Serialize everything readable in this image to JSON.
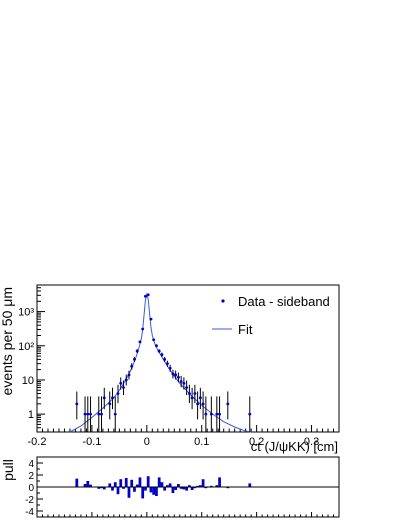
{
  "chart_data": [
    {
      "type": "scatter",
      "xlabel": "ct (J/ψKK) [cm]",
      "ylabel": "events per 50 μm",
      "yscale": "log",
      "xlim": [
        -0.2,
        0.35
      ],
      "ylim": [
        0.3,
        6000
      ],
      "x_tick_labels": [
        "-0.2",
        "-0.1",
        "0",
        "0.1",
        "0.2",
        "0.3"
      ],
      "y_tick_labels": [
        "1",
        "10",
        "10²",
        "10³"
      ],
      "legend": {
        "position": "top-right",
        "entries": [
          "Data - sideband",
          "Fit"
        ]
      },
      "series": [
        {
          "name": "Data - sideband",
          "style": "points-with-errors",
          "color": "#0000cc",
          "points": [
            {
              "x": -0.1275,
              "y": 2.0,
              "elo": 1.3,
              "ehi": 2.6
            },
            {
              "x": -0.1125,
              "y": 1.0,
              "elo": 0.83,
              "ehi": 2.3
            },
            {
              "x": -0.1075,
              "y": 1.0,
              "elo": 0.83,
              "ehi": 2.3
            },
            {
              "x": -0.1025,
              "y": 1.0,
              "elo": 0.83,
              "ehi": 2.3
            },
            {
              "x": -0.0875,
              "y": 1.0,
              "elo": 0.83,
              "ehi": 2.3
            },
            {
              "x": -0.0825,
              "y": 1.0,
              "elo": 0.83,
              "ehi": 2.3
            },
            {
              "x": -0.0775,
              "y": 3.0,
              "elo": 1.6,
              "ehi": 2.9
            },
            {
              "x": -0.0675,
              "y": 2.0,
              "elo": 1.3,
              "ehi": 2.6
            },
            {
              "x": -0.0625,
              "y": 3.0,
              "elo": 1.6,
              "ehi": 2.9
            },
            {
              "x": -0.0575,
              "y": 1.0,
              "elo": 0.83,
              "ehi": 2.3
            },
            {
              "x": -0.0525,
              "y": 4.0,
              "elo": 1.9,
              "ehi": 3.2
            },
            {
              "x": -0.0475,
              "y": 8.0,
              "elo": 2.8,
              "ehi": 3.9
            },
            {
              "x": -0.0425,
              "y": 6.0,
              "elo": 2.4,
              "ehi": 3.6
            },
            {
              "x": -0.0375,
              "y": 10.0,
              "elo": 3.1,
              "ehi": 4.3
            },
            {
              "x": -0.0325,
              "y": 14.0,
              "elo": 3.7,
              "ehi": 4.8
            },
            {
              "x": -0.0275,
              "y": 25.0,
              "elo": 5.0,
              "ehi": 6.0
            },
            {
              "x": -0.0225,
              "y": 40.0,
              "elo": 6.3,
              "ehi": 7.3
            },
            {
              "x": -0.0175,
              "y": 70.0,
              "elo": 8.4,
              "ehi": 9.4
            },
            {
              "x": -0.0125,
              "y": 130.0,
              "elo": 11.4,
              "ehi": 12.4
            },
            {
              "x": -0.0075,
              "y": 310.0,
              "elo": 17.6,
              "ehi": 18.6
            },
            {
              "x": -0.0025,
              "y": 2800.0,
              "elo": 53.0,
              "ehi": 54.0
            },
            {
              "x": 0.0025,
              "y": 3100.0,
              "elo": 55.7,
              "ehi": 56.7
            },
            {
              "x": 0.0075,
              "y": 600.0,
              "elo": 24.5,
              "ehi": 25.5
            },
            {
              "x": 0.0125,
              "y": 150.0,
              "elo": 12.2,
              "ehi": 13.2
            },
            {
              "x": 0.0175,
              "y": 100.0,
              "elo": 10.0,
              "ehi": 11.0
            },
            {
              "x": 0.0225,
              "y": 70.0,
              "elo": 8.4,
              "ehi": 9.4
            },
            {
              "x": 0.0275,
              "y": 55.0,
              "elo": 7.4,
              "ehi": 8.4
            },
            {
              "x": 0.0325,
              "y": 40.0,
              "elo": 6.3,
              "ehi": 7.3
            },
            {
              "x": 0.0375,
              "y": 30.0,
              "elo": 5.5,
              "ehi": 6.5
            },
            {
              "x": 0.0425,
              "y": 22.0,
              "elo": 4.7,
              "ehi": 5.7
            },
            {
              "x": 0.0475,
              "y": 15.0,
              "elo": 3.9,
              "ehi": 4.9
            },
            {
              "x": 0.0525,
              "y": 14.0,
              "elo": 3.7,
              "ehi": 4.8
            },
            {
              "x": 0.0575,
              "y": 12.0,
              "elo": 3.5,
              "ehi": 4.5
            },
            {
              "x": 0.0625,
              "y": 9.0,
              "elo": 2.9,
              "ehi": 4.1
            },
            {
              "x": 0.0675,
              "y": 8.0,
              "elo": 2.8,
              "ehi": 3.9
            },
            {
              "x": 0.0725,
              "y": 6.0,
              "elo": 2.4,
              "ehi": 3.6
            },
            {
              "x": 0.0775,
              "y": 4.0,
              "elo": 1.9,
              "ehi": 3.2
            },
            {
              "x": 0.0825,
              "y": 3.0,
              "elo": 1.6,
              "ehi": 2.9
            },
            {
              "x": 0.0875,
              "y": 4.0,
              "elo": 1.9,
              "ehi": 3.2
            },
            {
              "x": 0.0925,
              "y": 2.0,
              "elo": 1.3,
              "ehi": 2.6
            },
            {
              "x": 0.0975,
              "y": 3.0,
              "elo": 1.6,
              "ehi": 2.9
            },
            {
              "x": 0.1025,
              "y": 2.0,
              "elo": 1.3,
              "ehi": 2.6
            },
            {
              "x": 0.1075,
              "y": 1.0,
              "elo": 0.83,
              "ehi": 2.3
            },
            {
              "x": 0.1175,
              "y": 1.0,
              "elo": 0.83,
              "ehi": 2.3
            },
            {
              "x": 0.1275,
              "y": 1.0,
              "elo": 0.83,
              "ehi": 2.3
            },
            {
              "x": 0.1325,
              "y": 1.0,
              "elo": 0.83,
              "ehi": 2.3
            },
            {
              "x": 0.1475,
              "y": 2.0,
              "elo": 1.3,
              "ehi": 2.6
            },
            {
              "x": 0.1875,
              "y": 1.0,
              "elo": 0.83,
              "ehi": 2.3
            }
          ]
        },
        {
          "name": "Fit",
          "style": "line",
          "color": "#3b5bdb",
          "x": [
            -0.14,
            -0.12,
            -0.1,
            -0.08,
            -0.06,
            -0.05,
            -0.04,
            -0.03,
            -0.025,
            -0.02,
            -0.015,
            -0.01,
            -0.0075,
            -0.005,
            -0.0025,
            0.0,
            0.0025,
            0.005,
            0.0075,
            0.01,
            0.015,
            0.02,
            0.025,
            0.03,
            0.04,
            0.05,
            0.06,
            0.08,
            0.1,
            0.12,
            0.14,
            0.16,
            0.18,
            0.19
          ],
          "y": [
            0.3,
            0.45,
            0.8,
            1.5,
            3.0,
            5.0,
            9.0,
            18.0,
            28.0,
            45.0,
            80.0,
            160.0,
            300.0,
            800.0,
            2200.0,
            3200.0,
            2300.0,
            900.0,
            350.0,
            200.0,
            110.0,
            75.0,
            55.0,
            40.0,
            22.0,
            13.0,
            8.0,
            3.6,
            1.8,
            1.0,
            0.6,
            0.42,
            0.32,
            0.3
          ]
        }
      ]
    },
    {
      "type": "bar",
      "ylabel": "pull",
      "xlim": [
        -0.2,
        0.35
      ],
      "ylim": [
        -5,
        5
      ],
      "y_tick_labels": [
        "-4",
        "-2",
        "0",
        "2",
        "4"
      ],
      "bar_width": 0.005,
      "color": "#0000cc",
      "x": [
        -0.1275,
        -0.1125,
        -0.1075,
        -0.1025,
        -0.0875,
        -0.0825,
        -0.0775,
        -0.0675,
        -0.0625,
        -0.0575,
        -0.0525,
        -0.0475,
        -0.0425,
        -0.0375,
        -0.0325,
        -0.0275,
        -0.0225,
        -0.0175,
        -0.0125,
        -0.0075,
        -0.0025,
        0.0025,
        0.0075,
        0.0125,
        0.0175,
        0.0225,
        0.0275,
        0.0325,
        0.0375,
        0.0425,
        0.0475,
        0.0525,
        0.0575,
        0.0625,
        0.0675,
        0.0725,
        0.0775,
        0.0825,
        0.0875,
        0.0925,
        0.0975,
        0.1025,
        0.1075,
        0.1175,
        0.1275,
        0.1325,
        0.1475,
        0.1875
      ],
      "values": [
        1.4,
        0.5,
        1.0,
        0.4,
        -0.3,
        -0.2,
        -0.4,
        0.6,
        -0.6,
        0.8,
        -1.2,
        1.3,
        -0.3,
        1.5,
        -1.8,
        1.2,
        -0.8,
        0.4,
        1.6,
        -1.9,
        -0.6,
        1.8,
        -0.9,
        -1.3,
        -1.5,
        1.6,
        0.8,
        -0.6,
        0.3,
        0.6,
        -1.0,
        -0.5,
        0.5,
        -0.3,
        -0.4,
        -0.6,
        0.3,
        -0.5,
        -0.2,
        0.2,
        0.3,
        1.3,
        -0.2,
        0.2,
        0.3,
        1.6,
        -0.2,
        0.6
      ]
    }
  ]
}
